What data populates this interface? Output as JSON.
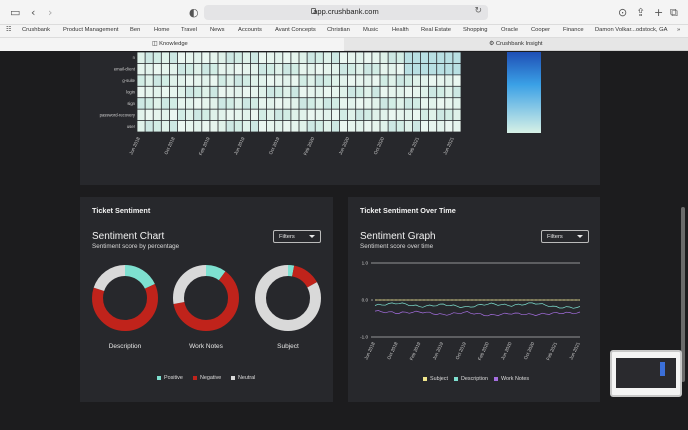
{
  "browser": {
    "url": "app.crushbank.com",
    "bookmarks": [
      "Crushbank",
      "Product Management",
      "Ben",
      "Home",
      "Travel",
      "News",
      "Accounts",
      "Avant Concepts",
      "Christian",
      "Music",
      "Health",
      "Real Estate",
      "Shopping",
      "Oracle",
      "Cooper",
      "Finance",
      "Damon Volkar...odstock, GA"
    ],
    "tabs": [
      {
        "label": "Knowledge",
        "active": true
      },
      {
        "label": "Crushbank Insight",
        "active": false
      }
    ]
  },
  "heatmap": {
    "rows": [
      "n",
      "email-client",
      "g-suite",
      "login",
      "sign",
      "password-recovery",
      "user"
    ],
    "x_ticks": [
      "Jun 2018",
      "Oct 2018",
      "Feb 2019",
      "Jun 2019",
      "Oct 2019",
      "Feb 2020",
      "Jun 2020",
      "Oct 2020",
      "Feb 2021",
      "Jun 2021"
    ]
  },
  "sentiment_card": {
    "title": "Ticket Sentiment",
    "chart_title": "Sentiment Chart",
    "subtitle": "Sentiment score by percentage",
    "filter_label": "Filters",
    "legend": [
      {
        "label": "Positive",
        "color": "#7ee0d0"
      },
      {
        "label": "Negative",
        "color": "#c0231b"
      },
      {
        "label": "Neutral",
        "color": "#d9d9d9"
      }
    ]
  },
  "time_card": {
    "title": "Ticket Sentiment Over Time",
    "chart_title": "Sentiment Graph",
    "subtitle": "Sentiment score over time",
    "filter_label": "Filters",
    "legend": [
      {
        "label": "Subject",
        "color": "#f0e68c"
      },
      {
        "label": "Description",
        "color": "#7ee0d0"
      },
      {
        "label": "Work Notes",
        "color": "#a56ee0"
      }
    ]
  },
  "chart_data": [
    {
      "type": "pie",
      "title": "Sentiment Chart",
      "subtitle": "Sentiment score by percentage",
      "categories": [
        "Positive",
        "Negative",
        "Neutral"
      ],
      "series": [
        {
          "name": "Description",
          "values": [
            18,
            62,
            20
          ]
        },
        {
          "name": "Work Notes",
          "values": [
            10,
            62,
            28
          ]
        },
        {
          "name": "Subject",
          "values": [
            3,
            14,
            83
          ]
        }
      ]
    },
    {
      "type": "line",
      "title": "Sentiment Graph",
      "subtitle": "Sentiment score over time",
      "ylim": [
        -1.0,
        1.0
      ],
      "y_ticks": [
        "1.0",
        "0.0",
        "-1.0"
      ],
      "x_ticks": [
        "Jun 2018",
        "Oct 2018",
        "Feb 2019",
        "Jun 2019",
        "Oct 2019",
        "Feb 2020",
        "Jun 2020",
        "Oct 2020",
        "Feb 2021",
        "Jun 2021"
      ],
      "series": [
        {
          "name": "Subject",
          "color": "#f0e68c",
          "values": [
            0.0,
            0.0,
            0.0,
            0.0,
            0.0,
            0.0,
            0.0,
            0.0,
            0.0,
            0.0
          ]
        },
        {
          "name": "Description",
          "color": "#7ee0d0",
          "values": [
            -0.15,
            -0.08,
            -0.18,
            -0.12,
            -0.2,
            -0.1,
            -0.15,
            -0.08,
            -0.2,
            -0.2
          ]
        },
        {
          "name": "Work Notes",
          "color": "#a56ee0",
          "values": [
            -0.3,
            -0.35,
            -0.32,
            -0.4,
            -0.33,
            -0.42,
            -0.36,
            -0.4,
            -0.35,
            -0.35
          ]
        }
      ]
    }
  ]
}
